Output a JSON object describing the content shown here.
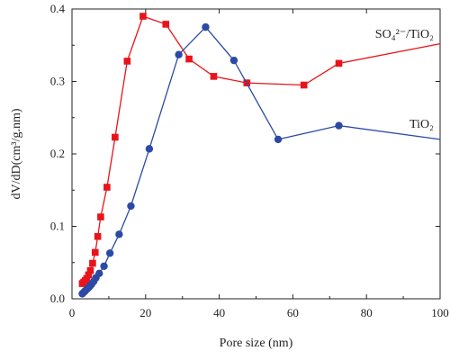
{
  "chart_data": {
    "type": "line",
    "xlabel": "Pore size (nm)",
    "ylabel": "dV/dD(cm³/g.nm)",
    "xlim": [
      0,
      100
    ],
    "ylim": [
      0,
      0.4
    ],
    "x_ticks": [
      0,
      20,
      40,
      60,
      80,
      100
    ],
    "y_ticks": [
      0.0,
      0.1,
      0.2,
      0.3,
      0.4
    ],
    "x_tick_labels": [
      "0",
      "20",
      "40",
      "60",
      "80",
      "100"
    ],
    "y_tick_labels": [
      "0.0",
      "0.1",
      "0.2",
      "0.3",
      "0.4"
    ],
    "grid": false,
    "legend": "inline labels at right",
    "series": [
      {
        "name": "SO₄²⁻/TiO₂",
        "color": "#e8141b",
        "marker": "square",
        "x": [
          2.8,
          3.2,
          3.6,
          4.0,
          4.5,
          5.0,
          5.6,
          6.3,
          7.0,
          7.8,
          9.5,
          11.7,
          15.0,
          19.3,
          25.5,
          31.8,
          38.5,
          47.5,
          63.0,
          72.5,
          100
        ],
        "y": [
          0.021,
          0.023,
          0.025,
          0.028,
          0.033,
          0.039,
          0.049,
          0.064,
          0.086,
          0.113,
          0.154,
          0.223,
          0.328,
          0.39,
          0.379,
          0.331,
          0.307,
          0.298,
          0.295,
          0.325,
          0.352
        ]
      },
      {
        "name": "TiO₂",
        "color": "#2b4aa6",
        "marker": "circle",
        "x": [
          2.8,
          3.2,
          3.6,
          4.0,
          4.4,
          4.8,
          5.3,
          5.9,
          6.5,
          7.4,
          8.7,
          10.3,
          12.8,
          16.0,
          21.0,
          29.0,
          36.3,
          44.0,
          56.0,
          72.5,
          100
        ],
        "y": [
          0.007,
          0.009,
          0.011,
          0.013,
          0.015,
          0.017,
          0.02,
          0.024,
          0.029,
          0.035,
          0.045,
          0.063,
          0.089,
          0.128,
          0.207,
          0.337,
          0.375,
          0.329,
          0.22,
          0.239,
          0.22
        ]
      }
    ]
  }
}
